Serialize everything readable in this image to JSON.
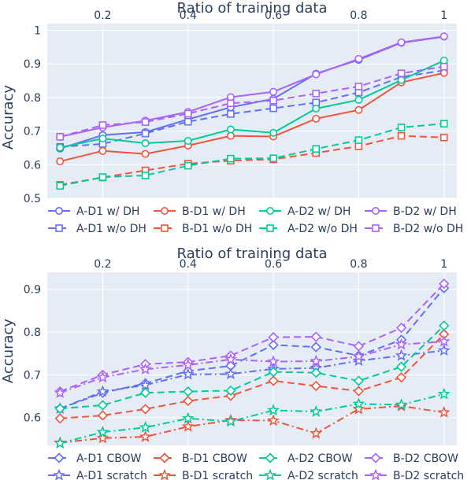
{
  "chart_data": [
    {
      "type": "line",
      "xlabel": "Ratio of training data",
      "ylabel": "Accuracy",
      "x_axis_position": "top",
      "xlim": [
        0.07,
        1.03
      ],
      "ylim": [
        0.5,
        1.02
      ],
      "xticks": [
        0.2,
        0.4,
        0.6,
        0.8,
        1
      ],
      "xtick_labels": [
        "0.2",
        "0.4",
        "0.6",
        "0.8",
        "1"
      ],
      "yticks": [
        0.5,
        0.6,
        0.7,
        0.8,
        0.9,
        1
      ],
      "ytick_labels": [
        "0.5",
        "0.6",
        "0.7",
        "0.8",
        "0.9",
        "1"
      ],
      "grid": true,
      "legend_position": "bottom",
      "x": [
        0.1,
        0.2,
        0.3,
        0.4,
        0.5,
        0.6,
        0.7,
        0.8,
        0.9,
        1.0
      ],
      "series": [
        {
          "name": "A-D1 w/ DH",
          "color": "#636efa",
          "dash": "solid",
          "marker": "circle",
          "values": [
            0.648,
            0.688,
            0.697,
            0.735,
            0.771,
            0.796,
            0.871,
            0.912,
            0.963,
            0.981
          ]
        },
        {
          "name": "A-D1 w/o DH",
          "color": "#636efa",
          "dash": "dash",
          "marker": "square",
          "values": [
            0.653,
            0.662,
            0.693,
            0.728,
            0.751,
            0.768,
            0.785,
            0.815,
            0.861,
            0.881
          ]
        },
        {
          "name": "B-D1 w/ DH",
          "color": "#ef553b",
          "dash": "solid",
          "marker": "circle",
          "values": [
            0.61,
            0.641,
            0.632,
            0.657,
            0.686,
            0.684,
            0.737,
            0.763,
            0.845,
            0.873
          ]
        },
        {
          "name": "B-D1 w/o DH",
          "color": "#ef553b",
          "dash": "dash",
          "marker": "square",
          "values": [
            0.54,
            0.562,
            0.583,
            0.603,
            0.612,
            0.616,
            0.635,
            0.655,
            0.686,
            0.681
          ]
        },
        {
          "name": "A-D2 w/ DH",
          "color": "#00cc96",
          "dash": "solid",
          "marker": "circle",
          "values": [
            0.651,
            0.678,
            0.664,
            0.671,
            0.705,
            0.695,
            0.767,
            0.793,
            0.852,
            0.91
          ]
        },
        {
          "name": "A-D2 w/o DH",
          "color": "#00cc96",
          "dash": "dash",
          "marker": "square",
          "values": [
            0.537,
            0.563,
            0.568,
            0.597,
            0.618,
            0.619,
            0.647,
            0.673,
            0.711,
            0.722
          ]
        },
        {
          "name": "B-D2 w/ DH",
          "color": "#ab63fa",
          "dash": "solid",
          "marker": "circle",
          "values": [
            0.683,
            0.711,
            0.731,
            0.757,
            0.801,
            0.817,
            0.869,
            0.915,
            0.964,
            0.982
          ]
        },
        {
          "name": "B-D2 w/o DH",
          "color": "#ab63fa",
          "dash": "dash",
          "marker": "square",
          "values": [
            0.683,
            0.718,
            0.727,
            0.752,
            0.783,
            0.791,
            0.812,
            0.833,
            0.872,
            0.892
          ]
        }
      ]
    },
    {
      "type": "line",
      "xlabel": "Ratio of training data",
      "ylabel": "Accuracy",
      "x_axis_position": "top",
      "xlim": [
        0.07,
        1.03
      ],
      "ylim": [
        0.535,
        0.94
      ],
      "xticks": [
        0.2,
        0.4,
        0.6,
        0.8,
        1
      ],
      "xtick_labels": [
        "0.2",
        "0.4",
        "0.6",
        "0.8",
        "1"
      ],
      "yticks": [
        0.6,
        0.7,
        0.8,
        0.9
      ],
      "ytick_labels": [
        "0.6",
        "0.7",
        "0.8",
        "0.9"
      ],
      "grid": true,
      "legend_position": "bottom",
      "x": [
        0.1,
        0.2,
        0.3,
        0.4,
        0.5,
        0.6,
        0.7,
        0.8,
        0.9,
        1.0
      ],
      "series": [
        {
          "name": "A-D1 CBOW",
          "color": "#636efa",
          "dash": "dash",
          "marker": "diamond",
          "values": [
            0.621,
            0.658,
            0.68,
            0.709,
            0.721,
            0.77,
            0.765,
            0.745,
            0.782,
            0.903
          ]
        },
        {
          "name": "A-D1 scratch",
          "color": "#636efa",
          "dash": "dashdot",
          "marker": "star",
          "values": [
            0.621,
            0.661,
            0.676,
            0.701,
            0.702,
            0.714,
            0.716,
            0.733,
            0.745,
            0.757
          ]
        },
        {
          "name": "B-D1 CBOW",
          "color": "#ef553b",
          "dash": "dash",
          "marker": "diamond",
          "values": [
            0.598,
            0.605,
            0.62,
            0.639,
            0.651,
            0.686,
            0.674,
            0.662,
            0.694,
            0.795
          ]
        },
        {
          "name": "B-D1 scratch",
          "color": "#ef553b",
          "dash": "dashdot",
          "marker": "star",
          "values": [
            0.541,
            0.552,
            0.555,
            0.579,
            0.594,
            0.593,
            0.563,
            0.62,
            0.627,
            0.612
          ]
        },
        {
          "name": "A-D2 CBOW",
          "color": "#00cc96",
          "dash": "dash",
          "marker": "diamond",
          "values": [
            0.621,
            0.629,
            0.658,
            0.661,
            0.663,
            0.707,
            0.705,
            0.686,
            0.719,
            0.815
          ]
        },
        {
          "name": "A-D2 scratch",
          "color": "#00cc96",
          "dash": "dashdot",
          "marker": "star",
          "values": [
            0.54,
            0.566,
            0.577,
            0.598,
            0.591,
            0.617,
            0.614,
            0.632,
            0.63,
            0.655
          ]
        },
        {
          "name": "B-D2 CBOW",
          "color": "#ab63fa",
          "dash": "dash",
          "marker": "diamond",
          "values": [
            0.661,
            0.7,
            0.725,
            0.73,
            0.745,
            0.788,
            0.789,
            0.767,
            0.81,
            0.913
          ]
        },
        {
          "name": "B-D2 scratch",
          "color": "#ab63fa",
          "dash": "dashdot",
          "marker": "star",
          "values": [
            0.658,
            0.694,
            0.713,
            0.723,
            0.736,
            0.731,
            0.732,
            0.743,
            0.771,
            0.778
          ]
        }
      ]
    }
  ]
}
